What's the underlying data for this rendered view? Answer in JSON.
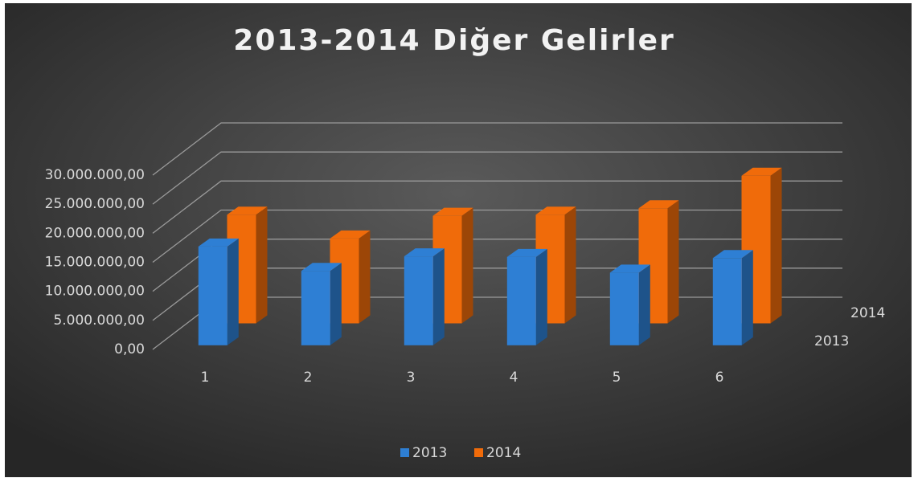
{
  "chart_data": {
    "type": "bar3d",
    "title": "2013-2014 Diğer Gelirler",
    "categories": [
      "1",
      "2",
      "3",
      "4",
      "5",
      "6"
    ],
    "series": [
      {
        "name": "2013",
        "color": "#2e7fd4",
        "values": [
          17000000,
          12800000,
          15300000,
          15200000,
          12500000,
          15000000
        ]
      },
      {
        "name": "2014",
        "color": "#f06b0a",
        "values": [
          18700000,
          14600000,
          18500000,
          18700000,
          19800000,
          25400000
        ]
      }
    ],
    "ylim": [
      0,
      30000000
    ],
    "yticks": [
      {
        "value": 0,
        "label": "0,00"
      },
      {
        "value": 5000000,
        "label": "5.000.000,00"
      },
      {
        "value": 10000000,
        "label": "10.000.000,00"
      },
      {
        "value": 15000000,
        "label": "15.000.000,00"
      },
      {
        "value": 20000000,
        "label": "20.000.000,00"
      },
      {
        "value": 25000000,
        "label": "25.000.000,00"
      },
      {
        "value": 30000000,
        "label": "30.000.000,00"
      }
    ],
    "grid": true,
    "legend": "bottom"
  }
}
